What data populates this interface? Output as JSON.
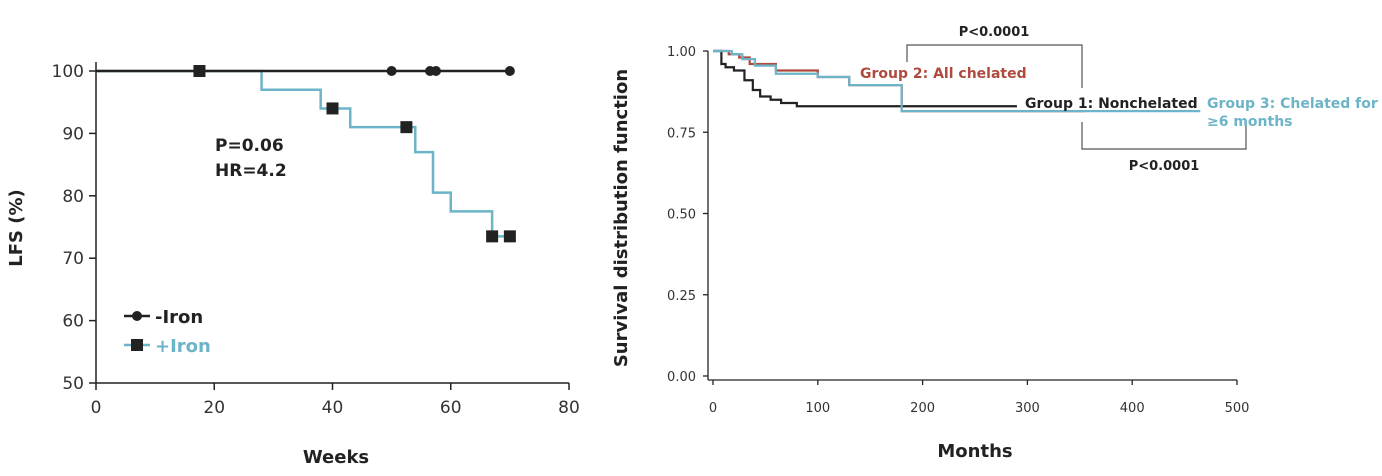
{
  "colors": {
    "axis": "#222222",
    "no_iron": "#222222",
    "iron": "#6cb4c8",
    "group1": "#222222",
    "group2": "#b04a3e",
    "group3": "#6cb4c8",
    "bracket": "#555555"
  },
  "chart_data": [
    {
      "type": "line",
      "step": true,
      "xlabel": "Weeks",
      "ylabel": "LFS (%)",
      "xlim": [
        0,
        80
      ],
      "ylim": [
        50,
        100
      ],
      "xticks": [
        0,
        20,
        40,
        60,
        80
      ],
      "yticks": [
        50,
        60,
        70,
        80,
        90,
        100
      ],
      "legend_placement": "bottom-left",
      "annotation_p": "P=0.06",
      "annotation_hr": "HR=4.2",
      "series": [
        {
          "name": "-Iron",
          "marker": "circle",
          "x": [
            0,
            70
          ],
          "y": [
            100,
            100
          ],
          "censor_x": [
            50,
            56.5,
            57.5,
            70
          ],
          "censor_y": [
            100,
            100,
            100,
            100
          ]
        },
        {
          "name": "+Iron",
          "marker": "square",
          "x": [
            0,
            28,
            38,
            43,
            54,
            57,
            60,
            67,
            70
          ],
          "y": [
            100,
            97,
            94,
            91,
            87,
            80.5,
            77.5,
            73.5,
            73.5
          ],
          "censor_x": [
            17.5,
            40,
            52.5,
            67,
            70
          ],
          "censor_y": [
            100,
            94,
            91,
            73.5,
            73.5
          ]
        }
      ]
    },
    {
      "type": "line",
      "step": true,
      "xlabel": "Months",
      "ylabel": "Survival distribution function",
      "xlim": [
        0,
        500
      ],
      "ylim": [
        0,
        1
      ],
      "xticks": [
        0,
        100,
        200,
        300,
        400,
        500
      ],
      "yticks": [
        "0.00",
        "0.25",
        "0.50",
        "0.75",
        "1.00"
      ],
      "series": [
        {
          "name": "Group 1: Nonchelated",
          "x": [
            0,
            8,
            12,
            20,
            30,
            38,
            45,
            55,
            65,
            80,
            290
          ],
          "y": [
            1.0,
            0.96,
            0.95,
            0.94,
            0.91,
            0.88,
            0.86,
            0.85,
            0.84,
            0.83,
            0.83
          ]
        },
        {
          "name": "Group 2: All chelated",
          "x": [
            0,
            15,
            25,
            35,
            60,
            100,
            130,
            180,
            355
          ],
          "y": [
            1.0,
            0.99,
            0.98,
            0.96,
            0.94,
            0.92,
            0.895,
            0.815,
            0.815
          ]
        },
        {
          "name": "Group 3: Chelated for ≥6 months",
          "x": [
            0,
            18,
            28,
            40,
            60,
            100,
            130,
            180,
            465
          ],
          "y": [
            1.0,
            0.99,
            0.975,
            0.955,
            0.93,
            0.92,
            0.895,
            0.815,
            0.815
          ]
        }
      ],
      "label_group2": "Group 2: All chelated",
      "label_group1": "Group 1: Nonchelated",
      "label_group3_line1": "Group 3: Chelated for",
      "label_group3_line2": "≥6 months",
      "p_top": "P<0.0001",
      "p_bottom": "P<0.0001"
    }
  ]
}
